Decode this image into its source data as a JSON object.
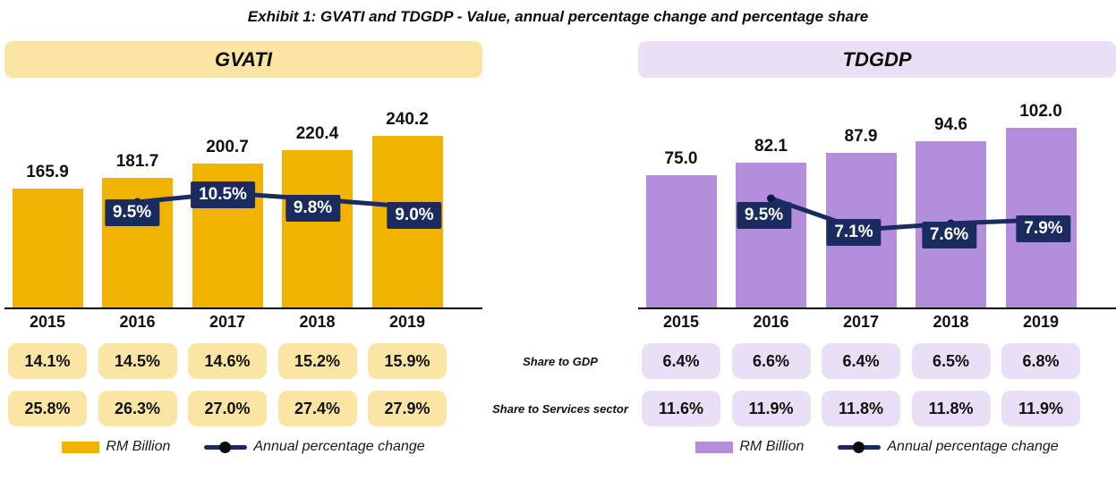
{
  "title": "Exhibit 1: GVATI and TDGDP - Value, annual percentage change and percentage share",
  "row_labels": {
    "gdp": "Share to GDP",
    "services": "Share to Services sector"
  },
  "colors": {
    "gvati_bar": "#f2b202",
    "gvati_light": "#fbe5a4",
    "tdgdp_bar": "#b48edd",
    "tdgdp_light": "#eae0f6",
    "line_navy": "#1a2c5f",
    "marker_dark": "#0b1d3f"
  },
  "chart_data": [
    {
      "type": "bar",
      "title": "GVATI",
      "categories": [
        "2015",
        "2016",
        "2017",
        "2018",
        "2019"
      ],
      "series": [
        {
          "name": "RM Billion",
          "type": "bar",
          "values": [
            165.9,
            181.7,
            200.7,
            220.4,
            240.2
          ],
          "value_labels": [
            "165.9",
            "181.7",
            "200.7",
            "220.4",
            "240.2"
          ],
          "color": "#f2b202"
        },
        {
          "name": "Annual percentage change",
          "type": "line",
          "values": [
            null,
            9.5,
            10.5,
            9.8,
            9.0
          ],
          "point_labels": [
            "",
            "9.5%",
            "10.5%",
            "9.8%",
            "9.0%"
          ],
          "color": "#1a2c5f"
        }
      ],
      "share_to_gdp": [
        "14.1%",
        "14.5%",
        "14.6%",
        "15.2%",
        "15.9%"
      ],
      "share_to_services_sector": [
        "25.8%",
        "26.3%",
        "27.0%",
        "27.4%",
        "27.9%"
      ],
      "legend": [
        {
          "label": "RM Billion",
          "swatch": "#f2b202",
          "glyph": "bar-swatch"
        },
        {
          "label": "Annual percentage change",
          "swatch": "#1a2c5f",
          "glyph": "line-marker"
        }
      ],
      "header_bg": "#fbe5a4",
      "pill_bg": "#fbe5a4",
      "ylim": [
        0,
        260
      ],
      "grid": false,
      "legend_position": "bottom"
    },
    {
      "type": "bar",
      "title": "TDGDP",
      "categories": [
        "2015",
        "2016",
        "2017",
        "2018",
        "2019"
      ],
      "series": [
        {
          "name": "RM Billion",
          "type": "bar",
          "values": [
            75.0,
            82.1,
            87.9,
            94.6,
            102.0
          ],
          "value_labels": [
            "75.0",
            "82.1",
            "87.9",
            "94.6",
            "102.0"
          ],
          "color": "#b48edd"
        },
        {
          "name": "Annual percentage change",
          "type": "line",
          "values": [
            null,
            9.5,
            7.1,
            7.6,
            7.9
          ],
          "point_labels": [
            "",
            "9.5%",
            "7.1%",
            "7.6%",
            "7.9%"
          ],
          "color": "#1a2c5f"
        }
      ],
      "share_to_gdp": [
        "6.4%",
        "6.6%",
        "6.4%",
        "6.5%",
        "6.8%"
      ],
      "share_to_services_sector": [
        "11.6%",
        "11.9%",
        "11.8%",
        "11.8%",
        "11.9%"
      ],
      "legend": [
        {
          "label": "RM Billion",
          "swatch": "#b48edd",
          "glyph": "bar-swatch"
        },
        {
          "label": "Annual percentage change",
          "swatch": "#1a2c5f",
          "glyph": "line-marker"
        }
      ],
      "header_bg": "#eae0f6",
      "pill_bg": "#eae0f6",
      "ylim": [
        0,
        110
      ],
      "grid": false,
      "legend_position": "bottom"
    }
  ]
}
